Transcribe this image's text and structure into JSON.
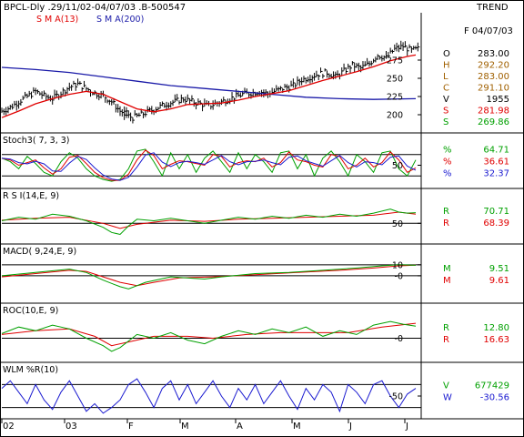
{
  "header": {
    "title": "BPCL-Dly .29/11/02-04/07/03 .B-500547",
    "trend_label": "TREND",
    "date_label": "F 04/07/03"
  },
  "colors": {
    "price": "#000000",
    "sma_short": "#e00000",
    "sma_long": "#1a1aa8",
    "green": "#00a000",
    "blue": "#1a1ad0",
    "border": "#000000",
    "label_text": "#222222"
  },
  "ohlc_legend": [
    {
      "key": "O",
      "value": "283.00",
      "color": "#000000"
    },
    {
      "key": "H",
      "value": "292.20",
      "color": "#a06000"
    },
    {
      "key": "L",
      "value": "283.00",
      "color": "#a06000"
    },
    {
      "key": "C",
      "value": "291.10",
      "color": "#a06000"
    },
    {
      "key": "V",
      "value": "1955",
      "color": "#000000"
    },
    {
      "key": "S",
      "value": "281.98",
      "color": "#e00000"
    },
    {
      "key": "S",
      "value": "269.86",
      "color": "#00a000"
    }
  ],
  "chart_data": [
    {
      "type": "line",
      "title": "",
      "subplot": "price",
      "legend": [
        {
          "label": "S M A(13)",
          "color": "#e00000"
        },
        {
          "label": "S M A(200)",
          "color": "#1a1aa8"
        }
      ],
      "ylim": [
        185,
        300
      ],
      "yticks": [
        200,
        225,
        250,
        275
      ],
      "months": [
        "02",
        "03",
        "F",
        "M",
        "A",
        "M",
        "J",
        "J"
      ],
      "close_path": [
        [
          0,
          205
        ],
        [
          4,
          210
        ],
        [
          8,
          218
        ],
        [
          12,
          225
        ],
        [
          16,
          232
        ],
        [
          20,
          226
        ],
        [
          24,
          222
        ],
        [
          28,
          230
        ],
        [
          32,
          238
        ],
        [
          36,
          242
        ],
        [
          40,
          236
        ],
        [
          44,
          230
        ],
        [
          48,
          226
        ],
        [
          52,
          218
        ],
        [
          56,
          205
        ],
        [
          58,
          200
        ],
        [
          62,
          196
        ],
        [
          66,
          200
        ],
        [
          70,
          205
        ],
        [
          74,
          210
        ],
        [
          78,
          215
        ],
        [
          82,
          218
        ],
        [
          86,
          222
        ],
        [
          90,
          218
        ],
        [
          94,
          215
        ],
        [
          98,
          212
        ],
        [
          102,
          216
        ],
        [
          106,
          220
        ],
        [
          110,
          224
        ],
        [
          114,
          228
        ],
        [
          118,
          230
        ],
        [
          122,
          232
        ],
        [
          126,
          229
        ],
        [
          130,
          233
        ],
        [
          134,
          237
        ],
        [
          138,
          240
        ],
        [
          142,
          248
        ],
        [
          146,
          252
        ],
        [
          150,
          256
        ],
        [
          154,
          258
        ],
        [
          158,
          252
        ],
        [
          162,
          260
        ],
        [
          166,
          268
        ],
        [
          170,
          264
        ],
        [
          174,
          270
        ],
        [
          178,
          282
        ],
        [
          182,
          278
        ],
        [
          186,
          290
        ],
        [
          190,
          294
        ],
        [
          194,
          288
        ],
        [
          196,
          291
        ]
      ],
      "sma13_path": [
        [
          0,
          196
        ],
        [
          8,
          205
        ],
        [
          16,
          215
        ],
        [
          24,
          222
        ],
        [
          32,
          228
        ],
        [
          40,
          232
        ],
        [
          48,
          228
        ],
        [
          56,
          218
        ],
        [
          64,
          208
        ],
        [
          72,
          204
        ],
        [
          80,
          208
        ],
        [
          88,
          214
        ],
        [
          96,
          215
        ],
        [
          104,
          216
        ],
        [
          112,
          220
        ],
        [
          120,
          225
        ],
        [
          128,
          229
        ],
        [
          136,
          233
        ],
        [
          144,
          240
        ],
        [
          152,
          247
        ],
        [
          160,
          253
        ],
        [
          168,
          259
        ],
        [
          176,
          266
        ],
        [
          184,
          274
        ],
        [
          192,
          280
        ],
        [
          196,
          282
        ]
      ],
      "sma200_path": [
        [
          0,
          265
        ],
        [
          16,
          262
        ],
        [
          32,
          258
        ],
        [
          48,
          252
        ],
        [
          64,
          246
        ],
        [
          80,
          240
        ],
        [
          96,
          236
        ],
        [
          112,
          232
        ],
        [
          128,
          228
        ],
        [
          144,
          224
        ],
        [
          160,
          222
        ],
        [
          176,
          221
        ],
        [
          196,
          222
        ]
      ]
    },
    {
      "type": "line",
      "title": "Stoch3( 7, 3, 3)",
      "subplot": "stochastic",
      "ylim": [
        0,
        100
      ],
      "yticks": [
        50
      ],
      "reference_lines": [
        20,
        80
      ],
      "series": [
        {
          "name": "%",
          "value": "64.71",
          "color": "#00a000"
        },
        {
          "name": "%",
          "value": "36.61",
          "color": "#e00000"
        },
        {
          "name": "%",
          "value": "32.37",
          "color": "#1a1ad0"
        }
      ],
      "k_path": [
        [
          0,
          70
        ],
        [
          4,
          60
        ],
        [
          8,
          40
        ],
        [
          12,
          75
        ],
        [
          16,
          55
        ],
        [
          20,
          30
        ],
        [
          24,
          20
        ],
        [
          28,
          60
        ],
        [
          32,
          85
        ],
        [
          36,
          70
        ],
        [
          40,
          40
        ],
        [
          44,
          20
        ],
        [
          48,
          10
        ],
        [
          52,
          5
        ],
        [
          56,
          10
        ],
        [
          60,
          40
        ],
        [
          64,
          90
        ],
        [
          68,
          95
        ],
        [
          72,
          60
        ],
        [
          76,
          20
        ],
        [
          80,
          85
        ],
        [
          84,
          40
        ],
        [
          88,
          80
        ],
        [
          92,
          30
        ],
        [
          96,
          70
        ],
        [
          100,
          90
        ],
        [
          104,
          60
        ],
        [
          108,
          30
        ],
        [
          112,
          85
        ],
        [
          116,
          40
        ],
        [
          120,
          80
        ],
        [
          124,
          60
        ],
        [
          128,
          30
        ],
        [
          132,
          85
        ],
        [
          136,
          90
        ],
        [
          140,
          40
        ],
        [
          144,
          80
        ],
        [
          148,
          20
        ],
        [
          152,
          70
        ],
        [
          156,
          90
        ],
        [
          160,
          60
        ],
        [
          164,
          20
        ],
        [
          168,
          80
        ],
        [
          172,
          60
        ],
        [
          176,
          30
        ],
        [
          180,
          85
        ],
        [
          184,
          90
        ],
        [
          188,
          40
        ],
        [
          192,
          20
        ],
        [
          196,
          65
        ]
      ]
    },
    {
      "type": "line",
      "title": "R S I(14,E, 9)",
      "subplot": "rsi",
      "ylim": [
        20,
        90
      ],
      "yticks": [
        50
      ],
      "series": [
        {
          "name": "R",
          "value": "70.71",
          "color": "#00a000"
        },
        {
          "name": "R",
          "value": "68.39",
          "color": "#e00000"
        }
      ],
      "rsi_path": [
        [
          0,
          55
        ],
        [
          8,
          62
        ],
        [
          16,
          58
        ],
        [
          24,
          68
        ],
        [
          32,
          64
        ],
        [
          40,
          55
        ],
        [
          48,
          42
        ],
        [
          52,
          32
        ],
        [
          56,
          28
        ],
        [
          60,
          45
        ],
        [
          64,
          58
        ],
        [
          72,
          55
        ],
        [
          80,
          60
        ],
        [
          88,
          55
        ],
        [
          96,
          50
        ],
        [
          104,
          56
        ],
        [
          112,
          62
        ],
        [
          120,
          58
        ],
        [
          128,
          64
        ],
        [
          136,
          60
        ],
        [
          144,
          66
        ],
        [
          152,
          62
        ],
        [
          160,
          68
        ],
        [
          168,
          64
        ],
        [
          176,
          70
        ],
        [
          184,
          78
        ],
        [
          188,
          72
        ],
        [
          192,
          70
        ],
        [
          196,
          71
        ]
      ],
      "signal_path": [
        [
          0,
          56
        ],
        [
          16,
          60
        ],
        [
          32,
          62
        ],
        [
          48,
          50
        ],
        [
          56,
          40
        ],
        [
          64,
          48
        ],
        [
          80,
          56
        ],
        [
          96,
          54
        ],
        [
          112,
          58
        ],
        [
          128,
          60
        ],
        [
          144,
          62
        ],
        [
          160,
          64
        ],
        [
          176,
          66
        ],
        [
          188,
          72
        ],
        [
          196,
          68
        ]
      ]
    },
    {
      "type": "line",
      "title": "MACD( 9,24,E, 9)",
      "subplot": "macd",
      "ylim": [
        -20,
        14
      ],
      "yticks": [
        10,
        0
      ],
      "ytick_labels": [
        "10",
        "-0"
      ],
      "series": [
        {
          "name": "M",
          "value": "9.51",
          "color": "#00a000"
        },
        {
          "name": "M",
          "value": "9.61",
          "color": "#e00000"
        }
      ],
      "macd_path": [
        [
          0,
          0
        ],
        [
          16,
          3
        ],
        [
          32,
          6
        ],
        [
          40,
          3
        ],
        [
          48,
          -4
        ],
        [
          56,
          -10
        ],
        [
          60,
          -12
        ],
        [
          68,
          -6
        ],
        [
          80,
          -1
        ],
        [
          96,
          -3
        ],
        [
          104,
          -1
        ],
        [
          120,
          2
        ],
        [
          136,
          3
        ],
        [
          152,
          5
        ],
        [
          168,
          7
        ],
        [
          180,
          9
        ],
        [
          188,
          10
        ],
        [
          196,
          9.5
        ]
      ],
      "signal_path": [
        [
          0,
          -1
        ],
        [
          16,
          2
        ],
        [
          32,
          5
        ],
        [
          40,
          4
        ],
        [
          48,
          -1
        ],
        [
          56,
          -6
        ],
        [
          64,
          -9
        ],
        [
          72,
          -6
        ],
        [
          84,
          -2
        ],
        [
          100,
          -1
        ],
        [
          120,
          1
        ],
        [
          140,
          3
        ],
        [
          160,
          5
        ],
        [
          176,
          7
        ],
        [
          188,
          9
        ],
        [
          196,
          9.6
        ]
      ]
    },
    {
      "type": "line",
      "title": "ROC(10,E, 9)",
      "subplot": "roc",
      "ylim": [
        -20,
        20
      ],
      "yticks": [
        0
      ],
      "ytick_labels": [
        "-0"
      ],
      "series": [
        {
          "name": "R",
          "value": "12.80",
          "color": "#00a000"
        },
        {
          "name": "R",
          "value": "16.63",
          "color": "#e00000"
        }
      ],
      "roc_path": [
        [
          0,
          5
        ],
        [
          8,
          12
        ],
        [
          16,
          8
        ],
        [
          24,
          14
        ],
        [
          32,
          10
        ],
        [
          40,
          0
        ],
        [
          48,
          -8
        ],
        [
          52,
          -14
        ],
        [
          56,
          -10
        ],
        [
          64,
          4
        ],
        [
          72,
          0
        ],
        [
          80,
          6
        ],
        [
          88,
          -2
        ],
        [
          96,
          -6
        ],
        [
          104,
          2
        ],
        [
          112,
          8
        ],
        [
          120,
          4
        ],
        [
          128,
          10
        ],
        [
          136,
          6
        ],
        [
          144,
          12
        ],
        [
          152,
          2
        ],
        [
          160,
          8
        ],
        [
          168,
          4
        ],
        [
          176,
          14
        ],
        [
          184,
          18
        ],
        [
          190,
          15
        ],
        [
          196,
          13
        ]
      ],
      "signal_path": [
        [
          0,
          4
        ],
        [
          16,
          8
        ],
        [
          32,
          10
        ],
        [
          44,
          2
        ],
        [
          52,
          -8
        ],
        [
          60,
          -4
        ],
        [
          72,
          2
        ],
        [
          88,
          2
        ],
        [
          100,
          0
        ],
        [
          116,
          4
        ],
        [
          132,
          6
        ],
        [
          148,
          6
        ],
        [
          164,
          6
        ],
        [
          180,
          12
        ],
        [
          196,
          16
        ]
      ]
    },
    {
      "type": "line",
      "title": "WLM %R(10)",
      "subplot": "williams",
      "ylim": [
        -100,
        0
      ],
      "yticks": [
        -50
      ],
      "reference_lines": [
        -20,
        -80
      ],
      "series": [
        {
          "name": "V",
          "value": "677429",
          "color": "#00a000"
        },
        {
          "name": "W",
          "value": "-30.56",
          "color": "#1a1ad0"
        }
      ],
      "wr_path": [
        [
          0,
          -30
        ],
        [
          4,
          -10
        ],
        [
          8,
          -40
        ],
        [
          12,
          -70
        ],
        [
          16,
          -20
        ],
        [
          20,
          -60
        ],
        [
          24,
          -85
        ],
        [
          28,
          -40
        ],
        [
          32,
          -10
        ],
        [
          36,
          -50
        ],
        [
          40,
          -90
        ],
        [
          44,
          -70
        ],
        [
          48,
          -95
        ],
        [
          52,
          -80
        ],
        [
          56,
          -60
        ],
        [
          60,
          -20
        ],
        [
          64,
          -5
        ],
        [
          68,
          -40
        ],
        [
          72,
          -80
        ],
        [
          76,
          -30
        ],
        [
          80,
          -10
        ],
        [
          84,
          -60
        ],
        [
          88,
          -20
        ],
        [
          92,
          -70
        ],
        [
          96,
          -40
        ],
        [
          100,
          -10
        ],
        [
          104,
          -50
        ],
        [
          108,
          -80
        ],
        [
          112,
          -30
        ],
        [
          116,
          -60
        ],
        [
          120,
          -20
        ],
        [
          124,
          -70
        ],
        [
          128,
          -40
        ],
        [
          132,
          -10
        ],
        [
          136,
          -50
        ],
        [
          140,
          -85
        ],
        [
          144,
          -30
        ],
        [
          148,
          -60
        ],
        [
          152,
          -20
        ],
        [
          156,
          -40
        ],
        [
          160,
          -90
        ],
        [
          164,
          -20
        ],
        [
          168,
          -40
        ],
        [
          172,
          -70
        ],
        [
          176,
          -20
        ],
        [
          180,
          -10
        ],
        [
          184,
          -50
        ],
        [
          188,
          -80
        ],
        [
          192,
          -45
        ],
        [
          196,
          -30
        ]
      ]
    }
  ]
}
